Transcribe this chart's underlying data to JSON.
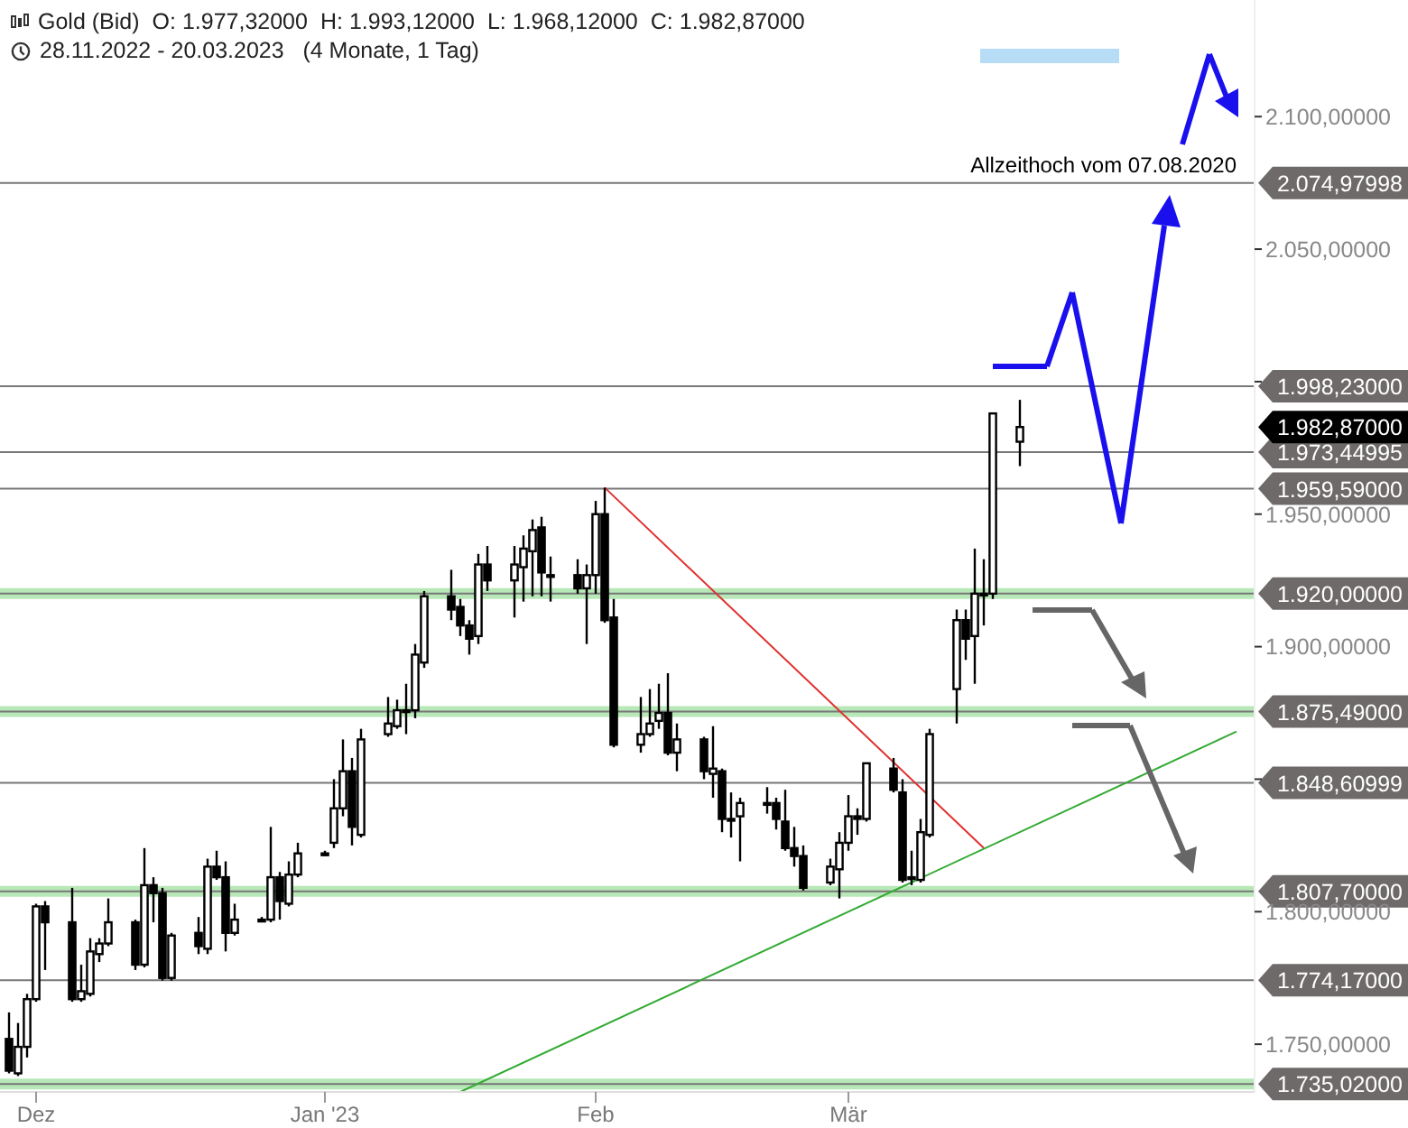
{
  "chart_data": {
    "type": "candlestick",
    "title": "Gold (Bid)",
    "subtitle": "28.11.2022 - 20.03.2023   (4 Monate, 1 Tag)",
    "color": "#000000",
    "x": [
      "2022-11-28",
      "2022-11-29",
      "2022-11-30",
      "2022-12-01",
      "2022-12-02",
      "2022-12-05",
      "2022-12-06",
      "2022-12-07",
      "2022-12-08",
      "2022-12-09",
      "2022-12-12",
      "2022-12-13",
      "2022-12-14",
      "2022-12-15",
      "2022-12-16",
      "2022-12-19",
      "2022-12-20",
      "2022-12-21",
      "2022-12-22",
      "2022-12-23",
      "2022-12-26",
      "2022-12-27",
      "2022-12-28",
      "2022-12-29",
      "2022-12-30",
      "2023-01-02",
      "2023-01-03",
      "2023-01-04",
      "2023-01-05",
      "2023-01-06",
      "2023-01-09",
      "2023-01-10",
      "2023-01-11",
      "2023-01-12",
      "2023-01-13",
      "2023-01-16",
      "2023-01-17",
      "2023-01-18",
      "2023-01-19",
      "2023-01-20",
      "2023-01-23",
      "2023-01-24",
      "2023-01-25",
      "2023-01-26",
      "2023-01-27",
      "2023-01-30",
      "2023-01-31",
      "2023-02-01",
      "2023-02-02",
      "2023-02-03",
      "2023-02-06",
      "2023-02-07",
      "2023-02-08",
      "2023-02-09",
      "2023-02-10",
      "2023-02-13",
      "2023-02-14",
      "2023-02-15",
      "2023-02-16",
      "2023-02-17",
      "2023-02-20",
      "2023-02-21",
      "2023-02-22",
      "2023-02-23",
      "2023-02-24",
      "2023-02-27",
      "2023-02-28",
      "2023-03-01",
      "2023-03-02",
      "2023-03-03",
      "2023-03-06",
      "2023-03-07",
      "2023-03-08",
      "2023-03-09",
      "2023-03-10",
      "2023-03-13",
      "2023-03-14",
      "2023-03-15",
      "2023-03-16",
      "2023-03-17",
      "2023-03-20"
    ],
    "ohlc": [
      [
        1752,
        1762,
        1739,
        1740
      ],
      [
        1739,
        1758,
        1738,
        1749
      ],
      [
        1749,
        1769,
        1745,
        1767
      ],
      [
        1767,
        1803,
        1766,
        1802
      ],
      [
        1802,
        1804,
        1778,
        1796
      ],
      [
        1796,
        1809,
        1766,
        1767
      ],
      [
        1767,
        1780,
        1766,
        1770
      ],
      [
        1769,
        1790,
        1768,
        1785
      ],
      [
        1784,
        1790,
        1781,
        1788
      ],
      [
        1788,
        1805,
        1787,
        1796
      ],
      [
        1796,
        1797,
        1778,
        1780
      ],
      [
        1780,
        1824,
        1779,
        1810
      ],
      [
        1810,
        1813,
        1796,
        1807
      ],
      [
        1807,
        1809,
        1774,
        1775
      ],
      [
        1775,
        1792,
        1774,
        1791
      ],
      [
        1792,
        1798,
        1784,
        1787
      ],
      [
        1786,
        1820,
        1784,
        1817
      ],
      [
        1817,
        1823,
        1812,
        1813
      ],
      [
        1813,
        1819,
        1785,
        1792
      ],
      [
        1792,
        1803,
        1791,
        1797
      ],
      [
        1797,
        1798,
        1796,
        1797
      ],
      [
        1797,
        1832,
        1796,
        1813
      ],
      [
        1813,
        1815,
        1797,
        1804
      ],
      [
        1803,
        1819,
        1802,
        1814
      ],
      [
        1814,
        1826,
        1813,
        1822
      ],
      [
        1822,
        1823,
        1821,
        1822
      ],
      [
        1826,
        1850,
        1824,
        1839
      ],
      [
        1839,
        1865,
        1836,
        1853
      ],
      [
        1853,
        1858,
        1825,
        1832
      ],
      [
        1829,
        1869,
        1828,
        1865
      ],
      [
        1867,
        1881,
        1866,
        1871
      ],
      [
        1870,
        1880,
        1869,
        1876
      ],
      [
        1876,
        1886,
        1867,
        1876
      ],
      [
        1876,
        1901,
        1873,
        1897
      ],
      [
        1894,
        1921,
        1892,
        1919
      ],
      [
        1919,
        1929,
        1910,
        1914
      ],
      [
        1915,
        1918,
        1904,
        1908
      ],
      [
        1908,
        1910,
        1897,
        1903
      ],
      [
        1904,
        1935,
        1901,
        1931
      ],
      [
        1931,
        1938,
        1921,
        1925
      ],
      [
        1925,
        1938,
        1911,
        1931
      ],
      [
        1930,
        1942,
        1917,
        1937
      ],
      [
        1936,
        1948,
        1919,
        1944
      ],
      [
        1945,
        1949,
        1919,
        1928
      ],
      [
        1927,
        1934,
        1917,
        1927
      ],
      [
        1927,
        1933,
        1920,
        1922
      ],
      [
        1922,
        1931,
        1901,
        1927
      ],
      [
        1927,
        1955,
        1920,
        1950
      ],
      [
        1950,
        1960,
        1909,
        1910
      ],
      [
        1911,
        1918,
        1862,
        1863
      ],
      [
        1863,
        1881,
        1860,
        1867
      ],
      [
        1867,
        1884,
        1866,
        1871
      ],
      [
        1872,
        1886,
        1869,
        1875
      ],
      [
        1875,
        1890,
        1859,
        1860
      ],
      [
        1860,
        1871,
        1853,
        1865
      ],
      [
        1865,
        1866,
        1850,
        1853
      ],
      [
        1852,
        1870,
        1843,
        1854
      ],
      [
        1853,
        1854,
        1830,
        1835
      ],
      [
        1835,
        1845,
        1828,
        1835
      ],
      [
        1836,
        1843,
        1819,
        1841
      ],
      [
        1841,
        1847,
        1837,
        1841
      ],
      [
        1841,
        1843,
        1831,
        1835
      ],
      [
        1834,
        1846,
        1823,
        1824
      ],
      [
        1824,
        1832,
        1817,
        1821
      ],
      [
        1821,
        1825,
        1808,
        1809
      ],
      [
        1811,
        1820,
        1810,
        1817
      ],
      [
        1816,
        1830,
        1805,
        1826
      ],
      [
        1826,
        1844,
        1823,
        1836
      ],
      [
        1836,
        1839,
        1829,
        1835
      ],
      [
        1835,
        1856,
        1834,
        1856
      ],
      [
        1854,
        1858,
        1845,
        1846
      ],
      [
        1845,
        1850,
        1811,
        1812
      ],
      [
        1813,
        1823,
        1810,
        1813
      ],
      [
        1812,
        1835,
        1811,
        1830
      ],
      [
        1829,
        1869,
        1828,
        1867
      ],
      [
        1884,
        1914,
        1871,
        1910
      ],
      [
        1910,
        1914,
        1895,
        1903
      ],
      [
        1904,
        1937,
        1886,
        1920
      ],
      [
        1920,
        1933,
        1908,
        1920
      ],
      [
        1920,
        1988,
        1918,
        1988
      ],
      [
        1977.32,
        1993.12,
        1968.12,
        1982.87
      ]
    ],
    "series": [
      {
        "type": "line",
        "color": "#e03030",
        "x": [
          "2023-02-02",
          "2023-03-16"
        ],
        "values": [
          1960,
          1824
        ]
      },
      {
        "type": "line",
        "color": "#33aa33",
        "x": [
          "2023-01-17",
          "2023-04-13"
        ],
        "values": [
          1732,
          1868
        ]
      }
    ],
    "xlim": [
      "2022-11-27",
      "2023-04-15"
    ],
    "xticks": [
      {
        "value": "2022-12-01",
        "label": "Dez"
      },
      {
        "value": "2023-01-02",
        "label": "Jan '23"
      },
      {
        "value": "2023-02-01",
        "label": "Feb"
      },
      {
        "value": "2023-03-01",
        "label": "Mär"
      }
    ],
    "ylim": [
      1732,
      2144
    ],
    "yticks": [
      {
        "value": 1750,
        "label": "1.750,00000"
      },
      {
        "value": 1800,
        "label": "1.800,00000"
      },
      {
        "value": 1850,
        "label": null
      },
      {
        "value": 1900,
        "label": "1.900,00000"
      },
      {
        "value": 1950,
        "label": "1.950,00000"
      },
      {
        "value": 2000,
        "label": null
      },
      {
        "value": 2050,
        "label": "2.050,00000"
      },
      {
        "value": 2100,
        "label": "2.100,00000"
      }
    ],
    "ref_lines": [
      {
        "axis": "y",
        "value": 2074.97998,
        "label": "2.074,97998"
      },
      {
        "axis": "y",
        "value": 1998.23,
        "label": "1.998,23000"
      },
      {
        "axis": "y",
        "value": 1973.44995,
        "label": "1.973,44995"
      },
      {
        "axis": "y",
        "value": 1959.59,
        "label": "1.959,59000"
      },
      {
        "axis": "y",
        "value": 1920,
        "label": "1.920,00000",
        "color": "#b8e8b8"
      },
      {
        "axis": "y",
        "value": 1875.49,
        "label": "1.875,49000",
        "color": "#b8e8b8"
      },
      {
        "axis": "y",
        "value": 1848.60999,
        "label": "1.848,60999"
      },
      {
        "axis": "y",
        "value": 1807.7,
        "label": "1.807,70000",
        "color": "#b8e8b8"
      },
      {
        "axis": "y",
        "value": 1774.17,
        "label": "1.774,17000"
      },
      {
        "axis": "y",
        "value": 1735.02,
        "label": "1.735,02000",
        "color": "#b8e8b8"
      }
    ],
    "annotations": [
      "O: 1.977,32000",
      "H: 1.993,12000",
      "L: 1.968,12000",
      "C: 1.982,87000",
      {
        "text": "Allzeithoch vom 07.08.2020",
        "x": "2023-04-13",
        "y": 2074.97998
      },
      "1.982,87000"
    ],
    "grid": false,
    "legend": false
  }
}
